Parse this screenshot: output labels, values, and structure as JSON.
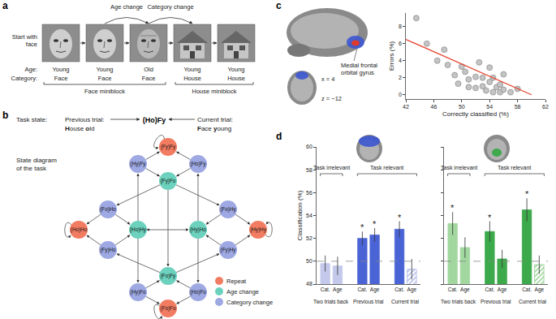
{
  "panel_labels": [
    "a",
    "b",
    "c",
    "d"
  ],
  "sequence": {
    "start_label": [
      "Start with",
      "face"
    ],
    "transitions": [
      "Age change",
      "Category change"
    ],
    "row_labels": [
      "Age:",
      "Category:"
    ],
    "ages": [
      "Young",
      "Young",
      "Old",
      "Young",
      "Young"
    ],
    "categories": [
      "Face",
      "Face",
      "Face",
      "House",
      "House"
    ],
    "miniblocks": [
      "Face miniblock",
      "House miniblock"
    ]
  },
  "task_state": {
    "title": "Task state:",
    "previous_label": "Previous trial:",
    "previous": "House old",
    "state": "(Ho)Fy",
    "current_label": "Current trial:",
    "current": "Face young"
  },
  "diagram": {
    "title": [
      "State diagram",
      "of the task"
    ],
    "legend": [
      {
        "name": "Repeat",
        "color": "#f27c62"
      },
      {
        "name": "Age change",
        "color": "#6cd1bd"
      },
      {
        "name": "Category change",
        "color": "#9ea8e2"
      }
    ],
    "nodes": [
      {
        "label": "(Fy)Fy",
        "kind": "Repeat"
      },
      {
        "label": "(Hy)Fy",
        "kind": "Category change"
      },
      {
        "label": "(Ho)Fy",
        "kind": "Category change"
      },
      {
        "label": "(Fy)Fo",
        "kind": "Age change"
      },
      {
        "label": "(Fo)Ho",
        "kind": "Category change"
      },
      {
        "label": "(Ho)Ho",
        "kind": "Repeat"
      },
      {
        "label": "(Ho)Hy",
        "kind": "Age change"
      },
      {
        "label": "(Fy)Ho",
        "kind": "Category change"
      },
      {
        "label": "(Fo)Hy",
        "kind": "Category change"
      },
      {
        "label": "(Hy)Hy",
        "kind": "Repeat"
      },
      {
        "label": "(Hy)Ho",
        "kind": "Age change"
      },
      {
        "label": "(Fy)Hy",
        "kind": "Category change"
      },
      {
        "label": "(Fo)Fy",
        "kind": "Age change"
      },
      {
        "label": "(Hy)Fo",
        "kind": "Category change"
      },
      {
        "label": "(Ho)Fo",
        "kind": "Category change"
      },
      {
        "label": "(Fo)Fo",
        "kind": "Repeat"
      }
    ]
  },
  "brain_labels": {
    "sagittal": "x = 4",
    "axial": "z = −12",
    "region": [
      "Medial frontal",
      "orbital gyrus"
    ]
  },
  "chart_data": [
    {
      "type": "scatter",
      "xlabel": "Correctly classified (%)",
      "ylabel": "Errors (%)",
      "xlim": [
        42,
        62
      ],
      "xticks": [
        42,
        46,
        50,
        54,
        58,
        62
      ],
      "ylim": [
        -0.5,
        9.6
      ],
      "yticks": [
        0,
        2,
        4,
        6,
        8
      ],
      "grid": false,
      "series": [
        {
          "type": "scatter",
          "marker": "circle",
          "color": "#c4c4c4",
          "x": [
            43.5,
            45,
            46.5,
            47.5,
            48,
            49,
            49.5,
            50,
            50.5,
            51,
            51,
            52,
            52,
            52.5,
            53,
            53,
            53.5,
            54,
            54,
            54.5,
            54.5,
            55,
            55.5,
            55.5,
            56,
            56,
            57,
            58
          ],
          "values": [
            9.0,
            6.0,
            4.0,
            5.3,
            3.5,
            2.3,
            1.3,
            3.3,
            2.7,
            1.8,
            0.9,
            2.1,
            0.8,
            3.8,
            2.0,
            1.0,
            0.5,
            1.5,
            3.2,
            2.0,
            0.3,
            0.9,
            1.2,
            0.3,
            0.6,
            2.4,
            0.3,
            0.7
          ]
        },
        {
          "type": "line",
          "color": "#e8412c",
          "x": [
            42,
            60
          ],
          "values": [
            6.5,
            0
          ]
        }
      ]
    },
    {
      "type": "bar",
      "ylabel": "Classification (%)",
      "categories": [
        "Cat.",
        "Age",
        "Cat.",
        "Age",
        "Cat.",
        "Age"
      ],
      "groups": [
        {
          "label": "Task irrelevant",
          "subgroups": [
            "Two trials back"
          ]
        },
        {
          "label": "Task relevant",
          "subgroups": [
            "Previous trial",
            "Current trial"
          ]
        }
      ],
      "series": [
        {
          "values": [
            49.8,
            49.6,
            52.0,
            52.3,
            52.8,
            null
          ],
          "errors": [
            0.7,
            0.8,
            0.6,
            0.6,
            0.7,
            null
          ],
          "colors": [
            "#c4c9ec",
            "#c4c9ec",
            "#4a64d6",
            "#4a64d6",
            "#4a64d6",
            "#4a64d6"
          ]
        },
        {
          "marker": "hatched",
          "color": "#aab4e6",
          "values": [
            null,
            null,
            null,
            null,
            null,
            49.3
          ],
          "errors": [
            null,
            null,
            null,
            null,
            null,
            0.9
          ]
        }
      ],
      "significant": [
        false,
        false,
        true,
        true,
        true,
        false
      ],
      "significance_mark": "*",
      "chance": 50,
      "ylim": [
        48,
        60
      ],
      "yticks": [
        48,
        50,
        52,
        54,
        56,
        58,
        60
      ],
      "grid": false
    },
    {
      "type": "bar",
      "categories": [
        "Cat.",
        "Age",
        "Cat.",
        "Age",
        "Cat.",
        "Age"
      ],
      "groups": [
        {
          "label": "Task irrelevant",
          "subgroups": [
            "Two trials back"
          ]
        },
        {
          "label": "Task relevant",
          "subgroups": [
            "Previous trial",
            "Current trial"
          ]
        }
      ],
      "series": [
        {
          "values": [
            53.3,
            51.2,
            52.6,
            50.2,
            54.5,
            null
          ],
          "errors": [
            1.0,
            0.9,
            0.9,
            0.8,
            1.0,
            null
          ],
          "colors": [
            "#a3d7a0",
            "#a3d7a0",
            "#3ca94a",
            "#3ca94a",
            "#3ca94a",
            "#3ca94a"
          ]
        },
        {
          "marker": "hatched",
          "color": "#8fcf8c",
          "values": [
            null,
            null,
            null,
            null,
            null,
            49.7
          ],
          "errors": [
            null,
            null,
            null,
            null,
            null,
            0.8
          ]
        }
      ],
      "significant": [
        true,
        false,
        true,
        false,
        true,
        false
      ],
      "significance_mark": "*",
      "chance": 50,
      "ylim": [
        48,
        60
      ],
      "yticks": [
        48,
        50,
        52,
        54,
        56,
        58,
        60
      ],
      "tick_labels": "x",
      "grid": false
    }
  ]
}
